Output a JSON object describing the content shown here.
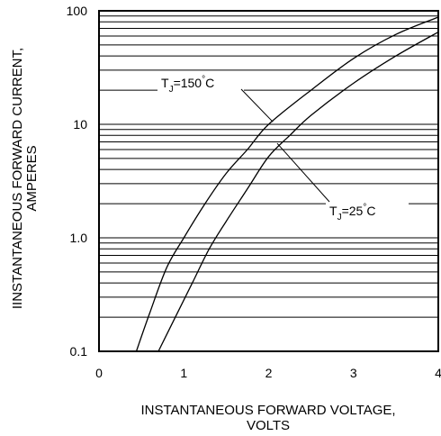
{
  "chart_data": {
    "type": "line",
    "xlabel": [
      "INSTANTANEOUS FORWARD VOLTAGE,",
      "VOLTS"
    ],
    "ylabel": [
      "IINSTANTANEOUS FORWARD CURRENT,",
      "AMPERES"
    ],
    "xlim": [
      0,
      4
    ],
    "ylim": [
      0.1,
      100
    ],
    "y_scale": "log",
    "grid": true,
    "x_ticks": [
      0,
      1,
      2,
      3,
      4
    ],
    "x_tick_labels": [
      "0",
      "1",
      "2",
      "3",
      "4"
    ],
    "y_ticks": [
      0.1,
      1,
      10,
      100
    ],
    "y_tick_labels": [
      "0.1",
      "1.0",
      "10",
      "100"
    ],
    "series": [
      {
        "name": "TJ=150°C",
        "label_parts": [
          "T",
          "J",
          "=150",
          "°",
          "C"
        ],
        "points": [
          [
            0.44,
            0.1
          ],
          [
            0.6,
            0.22
          ],
          [
            0.8,
            0.55
          ],
          [
            1.0,
            1.0
          ],
          [
            1.25,
            2.0
          ],
          [
            1.5,
            3.7
          ],
          [
            1.75,
            6.0
          ],
          [
            2.0,
            10.0
          ],
          [
            2.5,
            20.0
          ],
          [
            3.0,
            38.0
          ],
          [
            3.5,
            62.0
          ],
          [
            4.0,
            88.0
          ]
        ]
      },
      {
        "name": "TJ=25°C",
        "label_parts": [
          "T",
          "J",
          "=25",
          "°",
          "C"
        ],
        "points": [
          [
            0.7,
            0.1
          ],
          [
            0.9,
            0.2
          ],
          [
            1.1,
            0.4
          ],
          [
            1.3,
            0.8
          ],
          [
            1.5,
            1.4
          ],
          [
            1.75,
            2.7
          ],
          [
            2.0,
            5.2
          ],
          [
            2.25,
            8.0
          ],
          [
            2.5,
            12.0
          ],
          [
            3.0,
            23.0
          ],
          [
            3.5,
            40.0
          ],
          [
            4.0,
            65.0
          ]
        ]
      }
    ]
  }
}
